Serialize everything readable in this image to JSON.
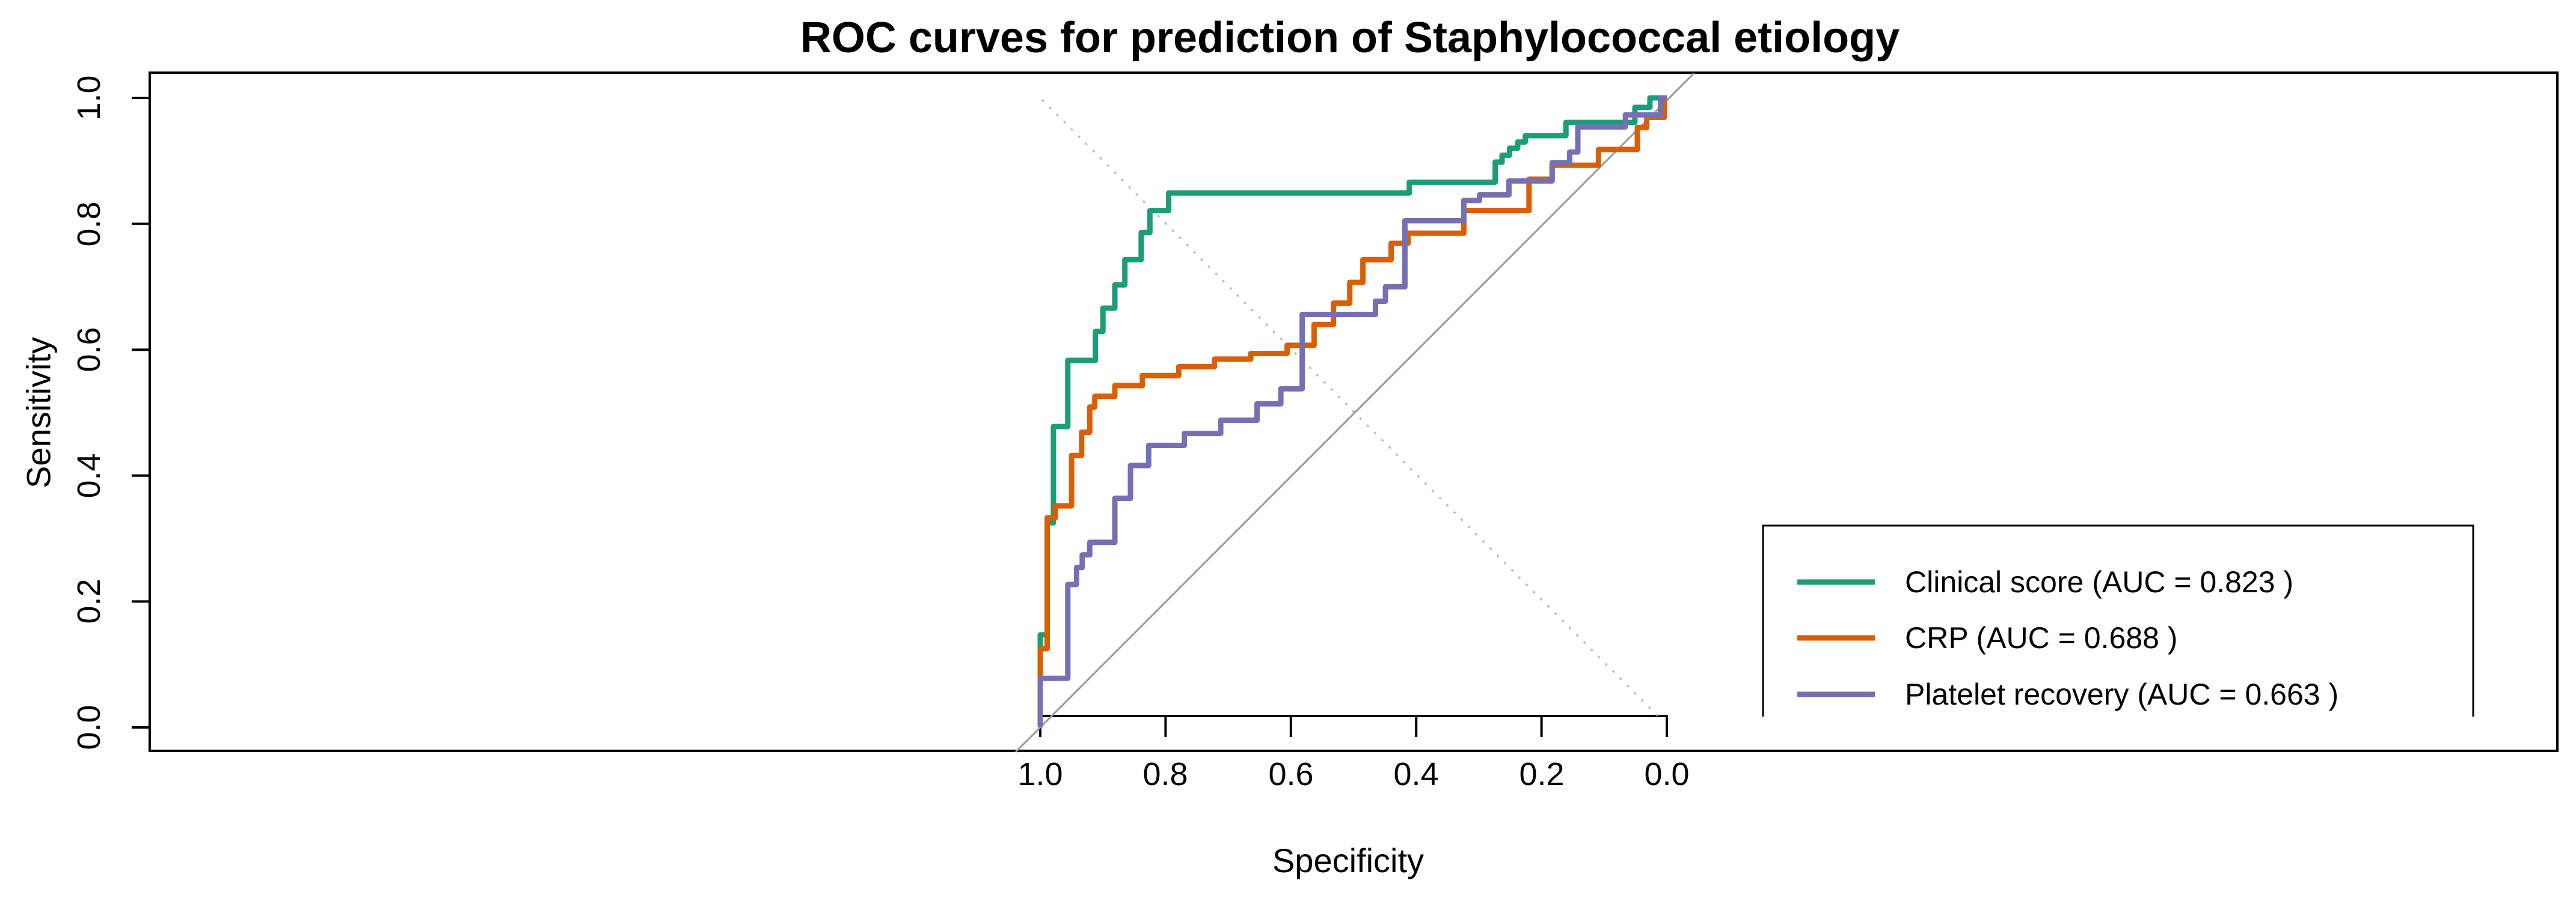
{
  "title": "ROC curves for prediction of Staphylococcal etiology",
  "axes": {
    "x_label": "Specificity",
    "y_label": "Sensitivity",
    "x_tick_labels": [
      "1.0",
      "0.8",
      "0.6",
      "0.4",
      "0.2",
      "0.0"
    ],
    "y_tick_labels": [
      "0.0",
      "0.2",
      "0.4",
      "0.6",
      "0.8",
      "1.0"
    ]
  },
  "legend": {
    "items": [
      {
        "label": "Clinical score (AUC = 0.823 )",
        "color": "#1B9E77"
      },
      {
        "label": "CRP (AUC = 0.688 )",
        "color": "#D95F02"
      },
      {
        "label": "Platelet recovery (AUC = 0.663 )",
        "color": "#7570B3"
      }
    ]
  },
  "chart_data": {
    "type": "line",
    "subtype": "roc-step-curves",
    "title": "ROC curves for prediction of Staphylococcal etiology",
    "xlabel": "Specificity",
    "ylabel": "Sensitivity",
    "x_axis": {
      "ticks": [
        1.0,
        0.8,
        0.6,
        0.4,
        0.2,
        0.0
      ],
      "range": [
        1.0,
        0.0
      ],
      "reversed": true
    },
    "y_axis": {
      "ticks": [
        0.0,
        0.2,
        0.4,
        0.6,
        0.8,
        1.0
      ],
      "range": [
        0.0,
        1.0
      ]
    },
    "grid": false,
    "legend_position": "bottom-right",
    "reference_lines": [
      {
        "name": "chance-diagonal",
        "style": "solid",
        "color": "#999999",
        "from_spec_sens": [
          1.0,
          0.0
        ],
        "to_spec_sens": [
          0.0,
          1.0
        ]
      },
      {
        "name": "sensitivity-equals-specificity",
        "style": "dotted",
        "color": "#b5b5b5",
        "from_spec_sens": [
          1.0,
          1.0
        ],
        "to_spec_sens": [
          0.0,
          0.0
        ]
      }
    ],
    "series": [
      {
        "name": "Clinical score",
        "auc": 0.823,
        "color": "#1B9E77",
        "points": [
          [
            1,
            0
          ],
          [
            1,
            0.147
          ],
          [
            0.989,
            0.147
          ],
          [
            0.989,
            0.325
          ],
          [
            0.979,
            0.325
          ],
          [
            0.979,
            0.478
          ],
          [
            0.956,
            0.478
          ],
          [
            0.956,
            0.583
          ],
          [
            0.912,
            0.583
          ],
          [
            0.912,
            0.629
          ],
          [
            0.9,
            0.629
          ],
          [
            0.9,
            0.666
          ],
          [
            0.881,
            0.666
          ],
          [
            0.881,
            0.703
          ],
          [
            0.865,
            0.703
          ],
          [
            0.865,
            0.743
          ],
          [
            0.839,
            0.743
          ],
          [
            0.839,
            0.786
          ],
          [
            0.825,
            0.786
          ],
          [
            0.825,
            0.821
          ],
          [
            0.795,
            0.821
          ],
          [
            0.795,
            0.849
          ],
          [
            0.411,
            0.849
          ],
          [
            0.411,
            0.866
          ],
          [
            0.274,
            0.866
          ],
          [
            0.274,
            0.898
          ],
          [
            0.263,
            0.898
          ],
          [
            0.263,
            0.909
          ],
          [
            0.251,
            0.909
          ],
          [
            0.251,
            0.92
          ],
          [
            0.238,
            0.92
          ],
          [
            0.238,
            0.93
          ],
          [
            0.226,
            0.93
          ],
          [
            0.226,
            0.94
          ],
          [
            0.161,
            0.94
          ],
          [
            0.161,
            0.961
          ],
          [
            0.051,
            0.961
          ],
          [
            0.051,
            0.985
          ],
          [
            0.027,
            0.985
          ],
          [
            0.027,
            1
          ],
          [
            0,
            1
          ]
        ]
      },
      {
        "name": "CRP",
        "auc": 0.688,
        "color": "#D95F02",
        "points": [
          [
            1,
            0
          ],
          [
            1,
            0.125
          ],
          [
            0.989,
            0.125
          ],
          [
            0.989,
            0.333
          ],
          [
            0.976,
            0.333
          ],
          [
            0.976,
            0.352
          ],
          [
            0.95,
            0.352
          ],
          [
            0.95,
            0.432
          ],
          [
            0.934,
            0.432
          ],
          [
            0.934,
            0.469
          ],
          [
            0.921,
            0.469
          ],
          [
            0.921,
            0.509
          ],
          [
            0.913,
            0.509
          ],
          [
            0.913,
            0.526
          ],
          [
            0.881,
            0.526
          ],
          [
            0.881,
            0.543
          ],
          [
            0.837,
            0.543
          ],
          [
            0.837,
            0.559
          ],
          [
            0.779,
            0.559
          ],
          [
            0.779,
            0.573
          ],
          [
            0.722,
            0.573
          ],
          [
            0.722,
            0.585
          ],
          [
            0.664,
            0.585
          ],
          [
            0.664,
            0.594
          ],
          [
            0.606,
            0.594
          ],
          [
            0.606,
            0.607
          ],
          [
            0.563,
            0.607
          ],
          [
            0.563,
            0.64
          ],
          [
            0.532,
            0.64
          ],
          [
            0.532,
            0.674
          ],
          [
            0.506,
            0.674
          ],
          [
            0.506,
            0.707
          ],
          [
            0.485,
            0.707
          ],
          [
            0.485,
            0.743
          ],
          [
            0.44,
            0.743
          ],
          [
            0.44,
            0.769
          ],
          [
            0.413,
            0.769
          ],
          [
            0.413,
            0.785
          ],
          [
            0.324,
            0.785
          ],
          [
            0.324,
            0.821
          ],
          [
            0.22,
            0.821
          ],
          [
            0.22,
            0.871
          ],
          [
            0.183,
            0.871
          ],
          [
            0.183,
            0.893
          ],
          [
            0.109,
            0.893
          ],
          [
            0.109,
            0.918
          ],
          [
            0.047,
            0.918
          ],
          [
            0.047,
            0.953
          ],
          [
            0.032,
            0.953
          ],
          [
            0.032,
            0.969
          ],
          [
            0.004,
            0.969
          ],
          [
            0.004,
            1
          ],
          [
            0,
            1
          ]
        ]
      },
      {
        "name": "Platelet recovery",
        "auc": 0.663,
        "color": "#7570B3",
        "points": [
          [
            1,
            0
          ],
          [
            1,
            0.078
          ],
          [
            0.956,
            0.078
          ],
          [
            0.956,
            0.227
          ],
          [
            0.942,
            0.227
          ],
          [
            0.942,
            0.254
          ],
          [
            0.933,
            0.254
          ],
          [
            0.933,
            0.274
          ],
          [
            0.921,
            0.274
          ],
          [
            0.921,
            0.294
          ],
          [
            0.881,
            0.294
          ],
          [
            0.881,
            0.364
          ],
          [
            0.856,
            0.364
          ],
          [
            0.856,
            0.416
          ],
          [
            0.827,
            0.416
          ],
          [
            0.827,
            0.448
          ],
          [
            0.77,
            0.448
          ],
          [
            0.77,
            0.467
          ],
          [
            0.712,
            0.467
          ],
          [
            0.712,
            0.488
          ],
          [
            0.654,
            0.488
          ],
          [
            0.654,
            0.514
          ],
          [
            0.616,
            0.514
          ],
          [
            0.616,
            0.538
          ],
          [
            0.582,
            0.538
          ],
          [
            0.582,
            0.656
          ],
          [
            0.465,
            0.656
          ],
          [
            0.465,
            0.677
          ],
          [
            0.449,
            0.677
          ],
          [
            0.449,
            0.7
          ],
          [
            0.418,
            0.7
          ],
          [
            0.418,
            0.805
          ],
          [
            0.324,
            0.805
          ],
          [
            0.324,
            0.837
          ],
          [
            0.299,
            0.837
          ],
          [
            0.299,
            0.846
          ],
          [
            0.252,
            0.846
          ],
          [
            0.252,
            0.868
          ],
          [
            0.183,
            0.868
          ],
          [
            0.183,
            0.897
          ],
          [
            0.155,
            0.897
          ],
          [
            0.155,
            0.914
          ],
          [
            0.142,
            0.914
          ],
          [
            0.142,
            0.954
          ],
          [
            0.066,
            0.954
          ],
          [
            0.066,
            0.973
          ],
          [
            0.01,
            0.973
          ],
          [
            0.01,
            1
          ],
          [
            0,
            1
          ]
        ]
      }
    ]
  }
}
